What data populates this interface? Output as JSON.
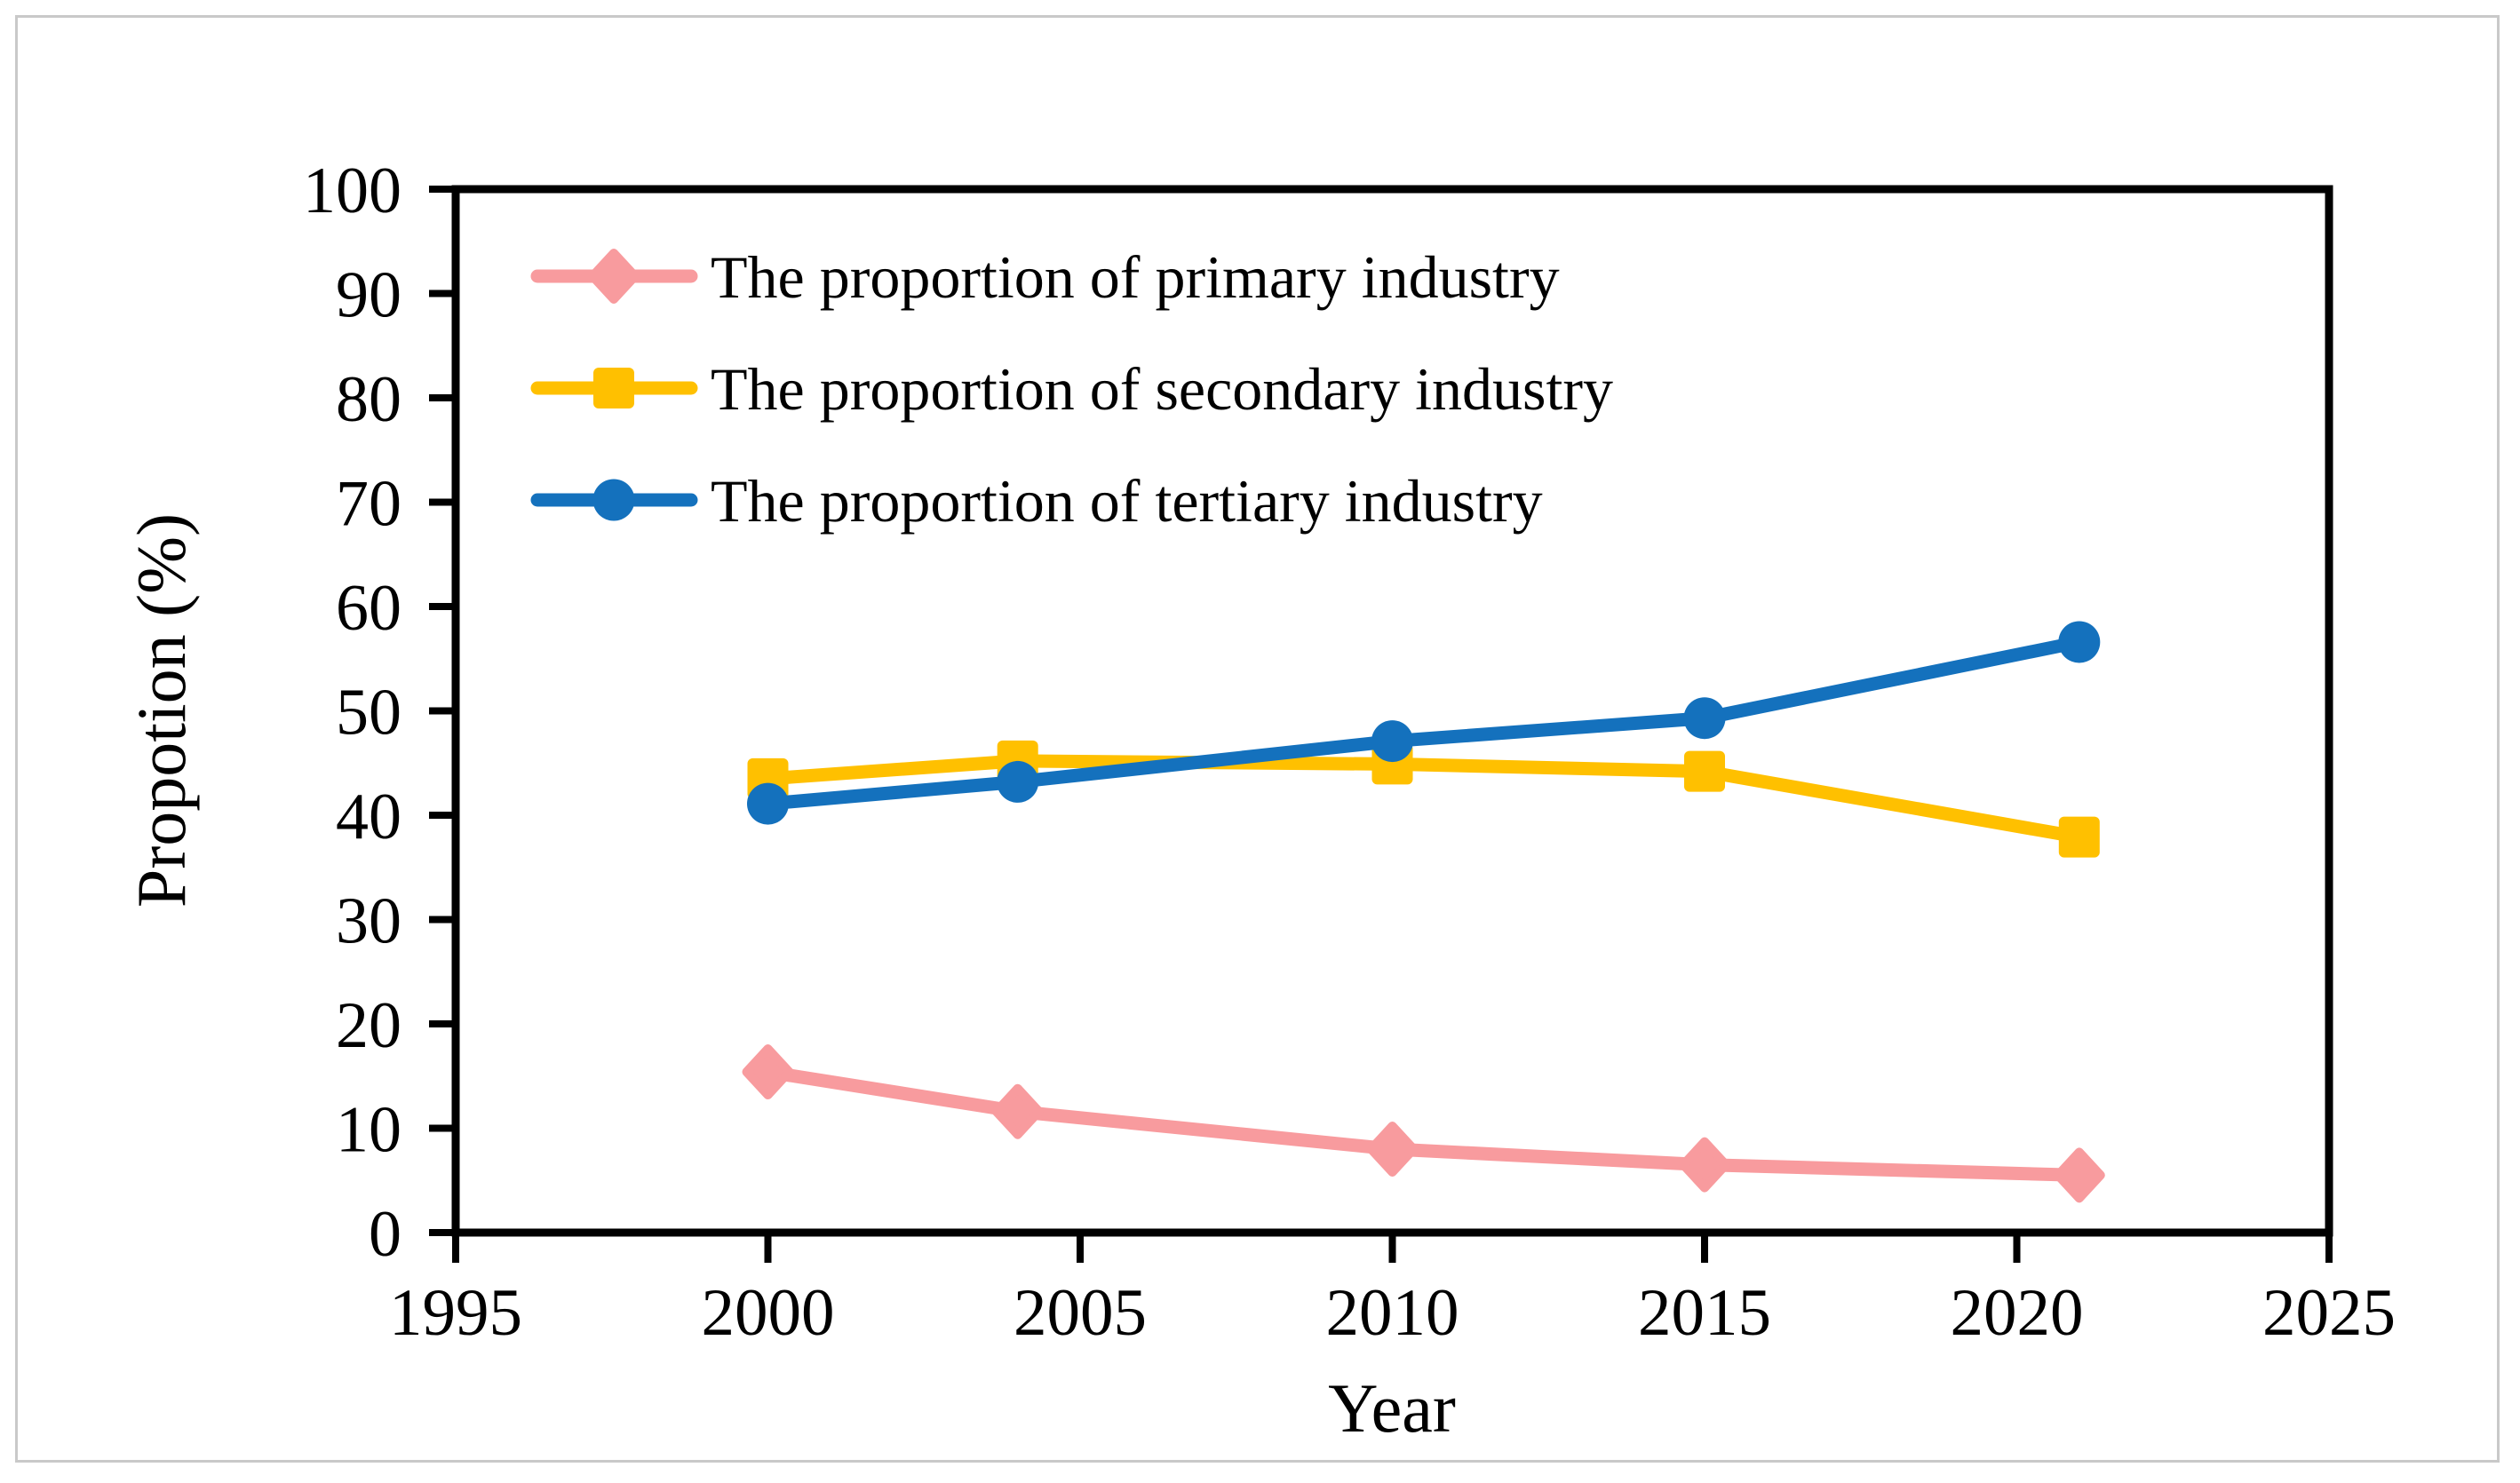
{
  "figure": {
    "background": "#ffffff",
    "border_color": "#c9c9c9",
    "axis_color": "#000000"
  },
  "chart_data": {
    "type": "line",
    "title": "",
    "xlabel": "Year",
    "ylabel": "Propotion (%)",
    "xlim": [
      1995,
      2025
    ],
    "ylim": [
      0,
      100
    ],
    "x_ticks": [
      1995,
      2000,
      2005,
      2010,
      2015,
      2020,
      2025
    ],
    "y_ticks": [
      0,
      10,
      20,
      30,
      40,
      50,
      60,
      70,
      80,
      90,
      100
    ],
    "grid": false,
    "legend_position": "top-left-inside",
    "x": [
      2000,
      2004,
      2010,
      2015,
      2021
    ],
    "series": [
      {
        "name": "The proportion of primary industry",
        "marker": "diamond",
        "color": "#F89B9E",
        "values": [
          15.4,
          11.6,
          8.0,
          6.5,
          5.5
        ]
      },
      {
        "name": "The proportion of secondary industry",
        "marker": "square",
        "color": "#FFC000",
        "values": [
          43.5,
          45.2,
          44.9,
          44.2,
          37.9
        ]
      },
      {
        "name": "The proportion of tertiary industry",
        "marker": "circle",
        "color": "#1471BD",
        "values": [
          41.1,
          43.2,
          47.1,
          49.3,
          56.6
        ]
      }
    ]
  }
}
